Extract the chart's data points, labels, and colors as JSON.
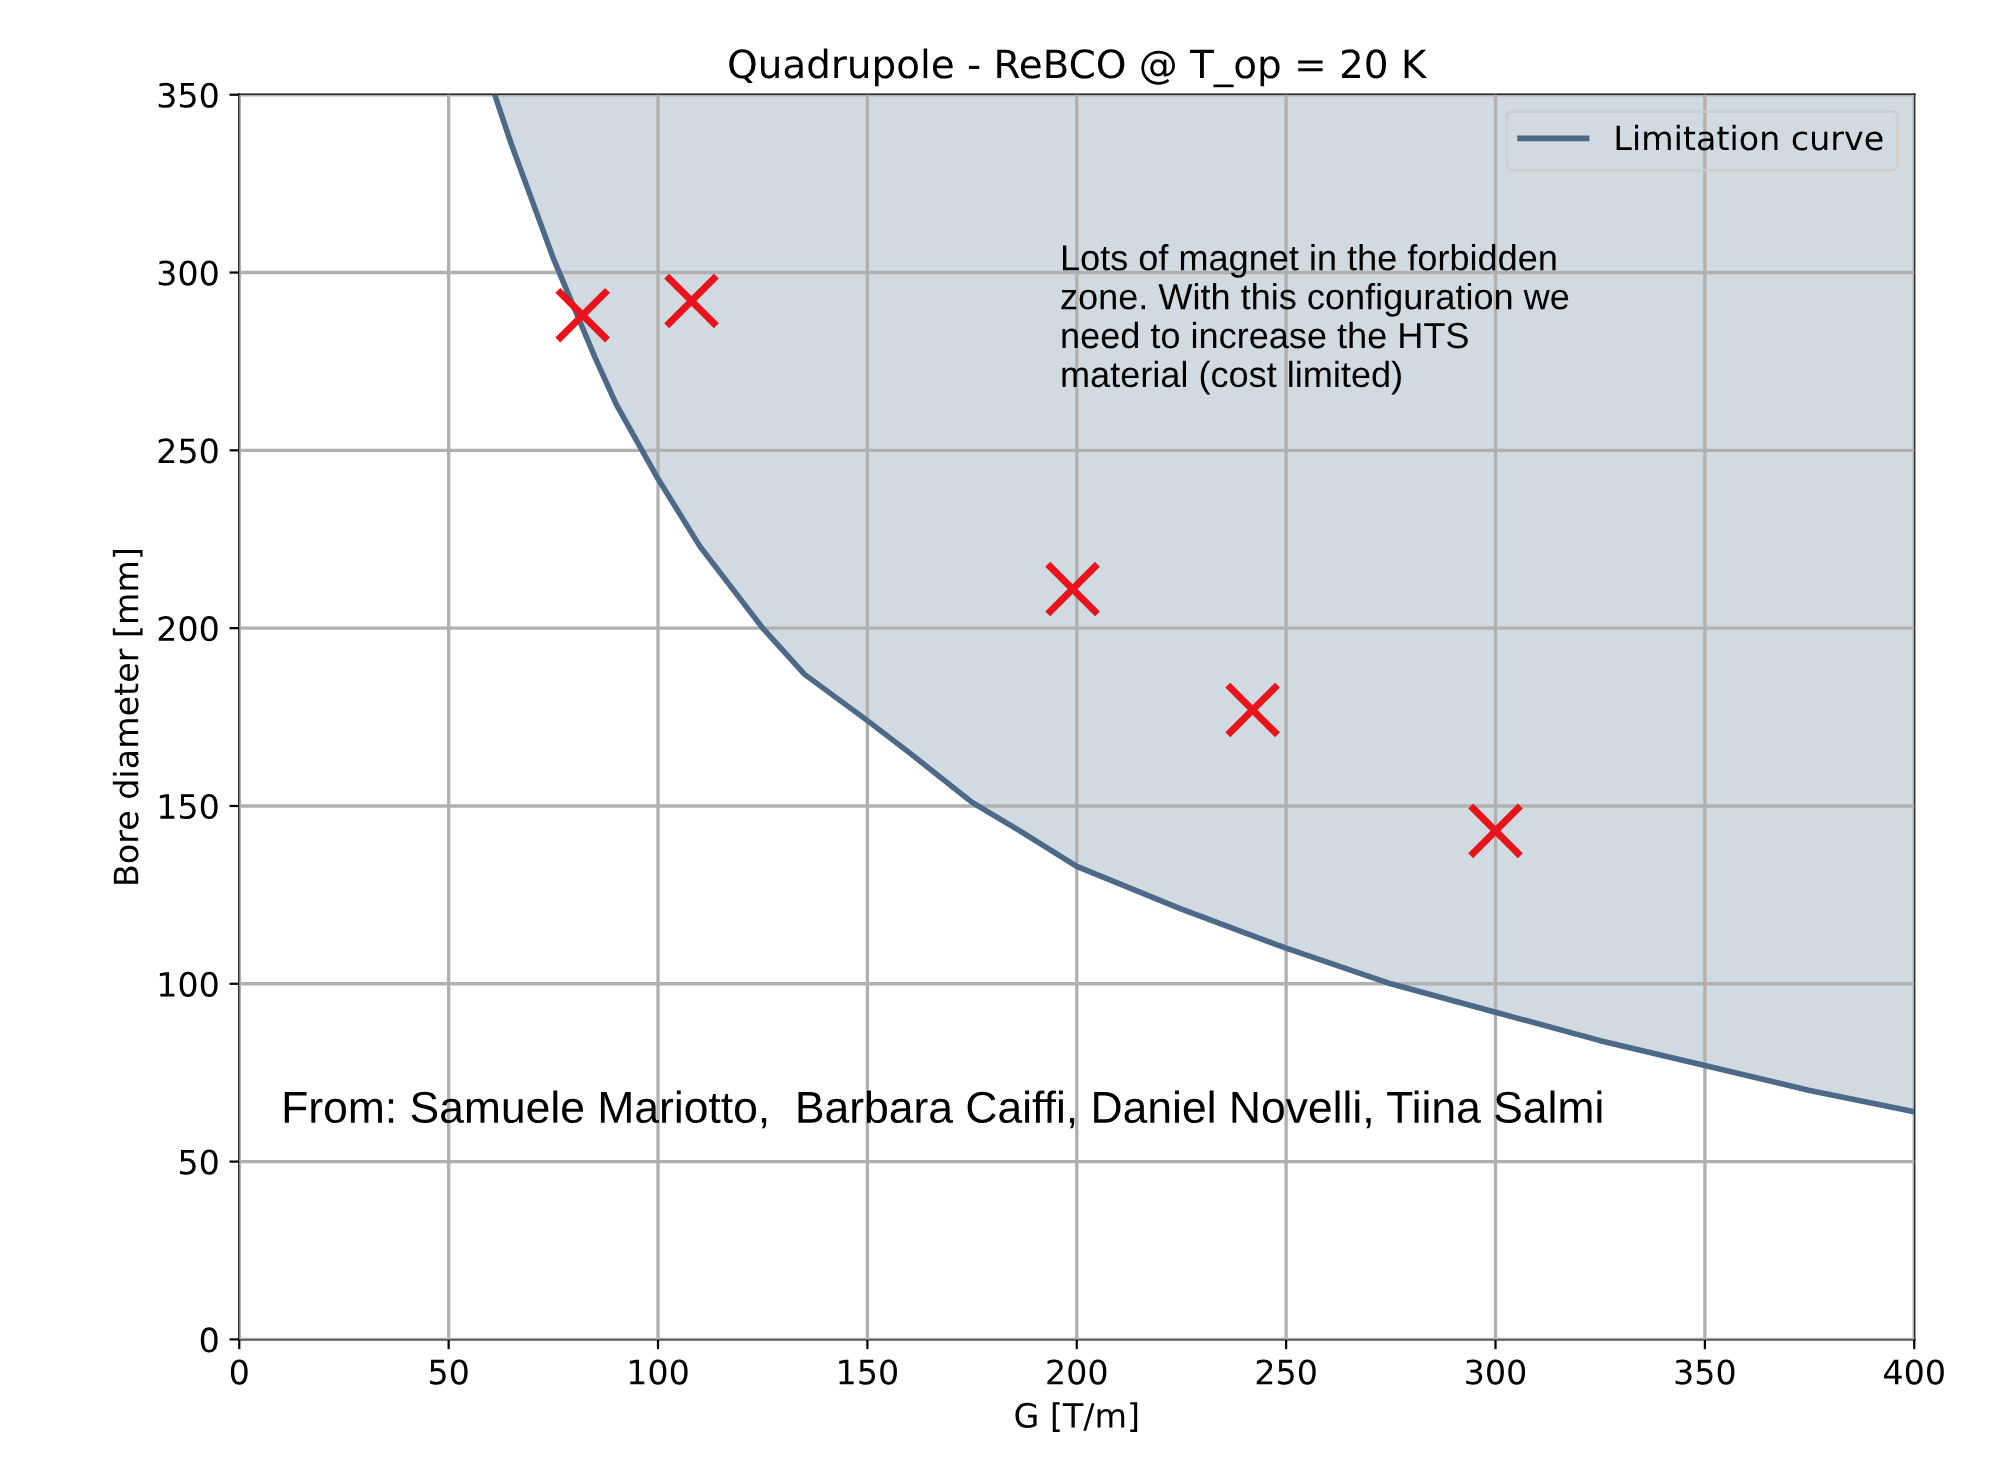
{
  "chart_data": {
    "type": "line",
    "title": "Quadrupole - ReBCO @ T_op = 20 K",
    "xlabel": "G [T/m]",
    "ylabel": "Bore diameter [mm]",
    "xlim": [
      0,
      400
    ],
    "ylim": [
      0,
      350
    ],
    "xticks": [
      0,
      50,
      100,
      150,
      200,
      250,
      300,
      350,
      400
    ],
    "yticks": [
      0,
      50,
      100,
      150,
      200,
      250,
      300,
      350
    ],
    "grid": true,
    "legend": "top right",
    "series": [
      {
        "name": "Limitation curve",
        "color": "#4c6a88",
        "marker": "none",
        "line_style": "solid",
        "x": [
          61,
          65,
          70,
          75,
          80,
          85,
          90,
          100,
          110,
          125,
          135,
          150,
          160,
          175,
          185,
          200,
          225,
          250,
          275,
          300,
          325,
          350,
          375,
          400
        ],
        "values": [
          350,
          336,
          320,
          304,
          290,
          276,
          263,
          242,
          223,
          200,
          187,
          174,
          165,
          151,
          144,
          133,
          121,
          110,
          100,
          92,
          84,
          77,
          70,
          64
        ],
        "lower": [
          350,
          336,
          320,
          304,
          290,
          276,
          263,
          242,
          223,
          200,
          187,
          174,
          165,
          151,
          144,
          133,
          121,
          110,
          100,
          92,
          84,
          77,
          70,
          64
        ],
        "upper": [
          350,
          350,
          350,
          350,
          350,
          350,
          350,
          350,
          350,
          350,
          350,
          350,
          350,
          350,
          350,
          350,
          350,
          350,
          350,
          350,
          350,
          350,
          350,
          350
        ]
      },
      {
        "type": "scatter",
        "color": "#e8131b",
        "marker": "cross",
        "x": [
          82,
          108,
          199,
          242,
          300
        ],
        "values": [
          288,
          292,
          211,
          177,
          143
        ]
      }
    ],
    "annotations": [
      "Lots of magnet in the forbidden\nzone. With this configuration we\nneed to increase the HTS\nmaterial (cost limited)",
      "From: Samuele Mariotto,  Barbara Caiffi, Daniel Novelli, Tiina Salmi"
    ]
  }
}
